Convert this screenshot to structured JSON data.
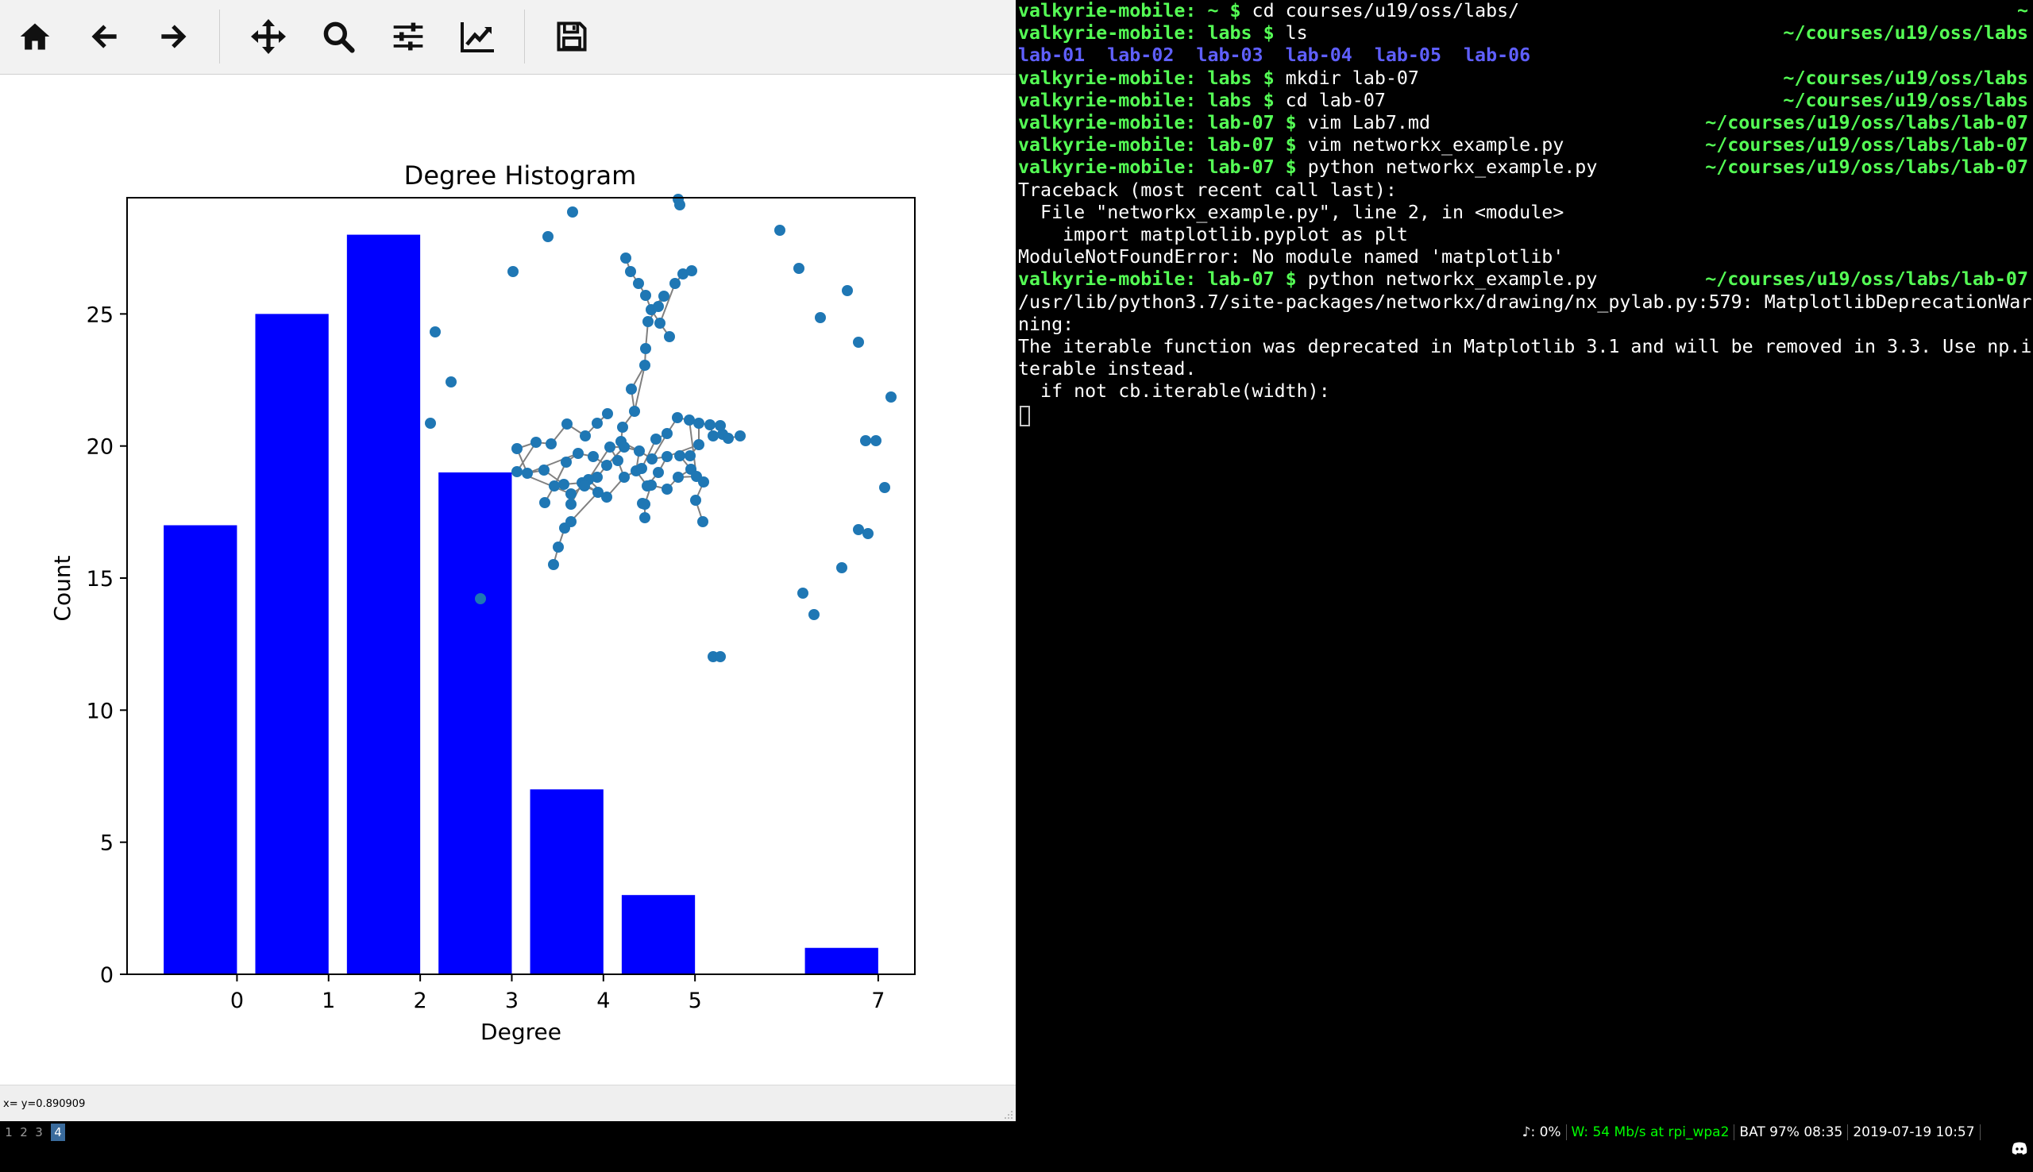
{
  "toolbar": {
    "home": "home-icon",
    "back": "arrow-left-icon",
    "forward": "arrow-right-icon",
    "pan": "move-icon",
    "zoom": "search-icon",
    "configure": "sliders-icon",
    "edit": "line-chart-icon",
    "save": "save-icon"
  },
  "status_text": "x= y=0.890909",
  "chart_data": {
    "type": "bar",
    "title": "Degree Histogram",
    "xlabel": "Degree",
    "ylabel": "Count",
    "categories": [
      0,
      1,
      2,
      3,
      4,
      5,
      7
    ],
    "values": [
      17,
      25,
      28,
      19,
      7,
      3,
      1
    ],
    "bar_color": "#0000ff",
    "xlim": [
      -1.2,
      7.4
    ],
    "ylim": [
      0,
      29.4
    ],
    "yticks": [
      0,
      5,
      10,
      15,
      20,
      25
    ],
    "xtick_labels": [
      "0",
      "1",
      "2",
      "3",
      "4",
      "5",
      "7"
    ],
    "grid": false,
    "inset_network": {
      "type": "scatter",
      "node_color": "#1f77b4",
      "edge_color": "#808080"
    }
  },
  "terminal": {
    "lines": [
      {
        "prompt": "valkyrie-mobile: ~ $",
        "cmd": " cd courses/u19/oss/labs/",
        "path": "~"
      },
      {
        "prompt": "valkyrie-mobile: labs $",
        "cmd": " ls",
        "path": "~/courses/u19/oss/labs"
      },
      {
        "dirs": "lab-01  lab-02  lab-03  lab-04  lab-05  lab-06"
      },
      {
        "prompt": "valkyrie-mobile: labs $",
        "cmd": " mkdir lab-07",
        "path": "~/courses/u19/oss/labs"
      },
      {
        "prompt": "valkyrie-mobile: labs $",
        "cmd": " cd lab-07",
        "path": "~/courses/u19/oss/labs"
      },
      {
        "prompt": "valkyrie-mobile: lab-07 $",
        "cmd": " vim Lab7.md",
        "path": "~/courses/u19/oss/labs/lab-07"
      },
      {
        "prompt": "valkyrie-mobile: lab-07 $",
        "cmd": " vim networkx_example.py",
        "path": "~/courses/u19/oss/labs/lab-07"
      },
      {
        "prompt": "valkyrie-mobile: lab-07 $",
        "cmd": " python networkx_example.py",
        "path": "~/courses/u19/oss/labs/lab-07"
      },
      {
        "text": "Traceback (most recent call last):"
      },
      {
        "text": "  File \"networkx_example.py\", line 2, in <module>"
      },
      {
        "text": "    import matplotlib.pyplot as plt"
      },
      {
        "text": "ModuleNotFoundError: No module named 'matplotlib'"
      },
      {
        "prompt": "valkyrie-mobile: lab-07 $",
        "cmd": " python networkx_example.py",
        "path": "~/courses/u19/oss/labs/lab-07"
      },
      {
        "text": "/usr/lib/python3.7/site-packages/networkx/drawing/nx_pylab.py:579: MatplotlibDeprecationWar"
      },
      {
        "text": "ning:"
      },
      {
        "text": "The iterable function was deprecated in Matplotlib 3.1 and will be removed in 3.3. Use np.i"
      },
      {
        "text": "terable instead."
      },
      {
        "text": "  if not cb.iterable(width):"
      }
    ]
  },
  "statusbar": {
    "workspaces": [
      "1",
      "2",
      "3",
      "4"
    ],
    "active_workspace": "4",
    "volume": "♪: 0%",
    "wifi": "W: 54 Mb/s at rpi_wpa2",
    "battery": "BAT 97% 08:35",
    "datetime": "2019-07-19 10:57",
    "tray_icon": "discord-icon"
  }
}
